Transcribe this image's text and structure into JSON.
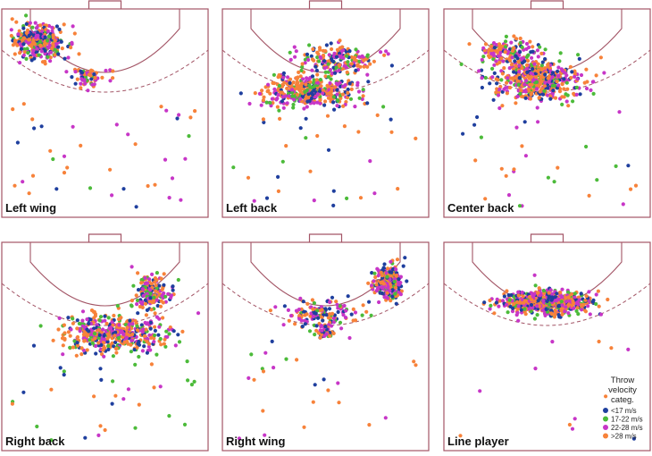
{
  "colors": {
    "court_line": "#a35566",
    "blue": "#1f3f9e",
    "green": "#4cbb3a",
    "magenta": "#c736c7",
    "orange": "#f7823a"
  },
  "chart_data": {
    "type": "scatter",
    "panels": [
      {
        "title": "Left wing",
        "clusters": [
          {
            "cx": 0.18,
            "cy": 0.16,
            "sx": 0.11,
            "sy": 0.07,
            "n": 360
          },
          {
            "cx": 0.42,
            "cy": 0.33,
            "sx": 0.08,
            "sy": 0.04,
            "n": 70
          }
        ],
        "scatter": 40
      },
      {
        "title": "Left back",
        "clusters": [
          {
            "cx": 0.42,
            "cy": 0.39,
            "sx": 0.2,
            "sy": 0.07,
            "n": 420
          },
          {
            "cx": 0.55,
            "cy": 0.24,
            "sx": 0.17,
            "sy": 0.06,
            "n": 180
          }
        ],
        "scatter": 35
      },
      {
        "title": "Center back",
        "clusters": [
          {
            "cx": 0.45,
            "cy": 0.34,
            "sx": 0.2,
            "sy": 0.09,
            "n": 520
          },
          {
            "cx": 0.3,
            "cy": 0.2,
            "sx": 0.12,
            "sy": 0.05,
            "n": 120
          }
        ],
        "scatter": 30
      },
      {
        "title": "Right back",
        "clusters": [
          {
            "cx": 0.55,
            "cy": 0.44,
            "sx": 0.23,
            "sy": 0.08,
            "n": 460
          },
          {
            "cx": 0.73,
            "cy": 0.24,
            "sx": 0.08,
            "sy": 0.08,
            "n": 170
          }
        ],
        "scatter": 35
      },
      {
        "title": "Right wing",
        "clusters": [
          {
            "cx": 0.8,
            "cy": 0.19,
            "sx": 0.06,
            "sy": 0.07,
            "n": 260
          },
          {
            "cx": 0.48,
            "cy": 0.34,
            "sx": 0.16,
            "sy": 0.06,
            "n": 140
          },
          {
            "cx": 0.5,
            "cy": 0.43,
            "sx": 0.04,
            "sy": 0.03,
            "n": 60
          }
        ],
        "scatter": 25
      },
      {
        "title": "Line player",
        "clusters": [
          {
            "cx": 0.5,
            "cy": 0.29,
            "sx": 0.19,
            "sy": 0.05,
            "n": 620
          }
        ],
        "scatter": 12
      }
    ],
    "legend": {
      "title": "Throw velocity categ.",
      "title_lines": [
        "Throw",
        "velocity",
        "categ."
      ],
      "entries": [
        {
          "label": "<17 m/s",
          "color": "#1f3f9e"
        },
        {
          "label": "17-22 m/s",
          "color": "#4cbb3a"
        },
        {
          "label": "22-28 m/s",
          "color": "#c736c7"
        },
        {
          "label": ">28 m/s",
          "color": "#f7823a"
        }
      ],
      "placement": "bottom-right"
    },
    "grid": false
  }
}
